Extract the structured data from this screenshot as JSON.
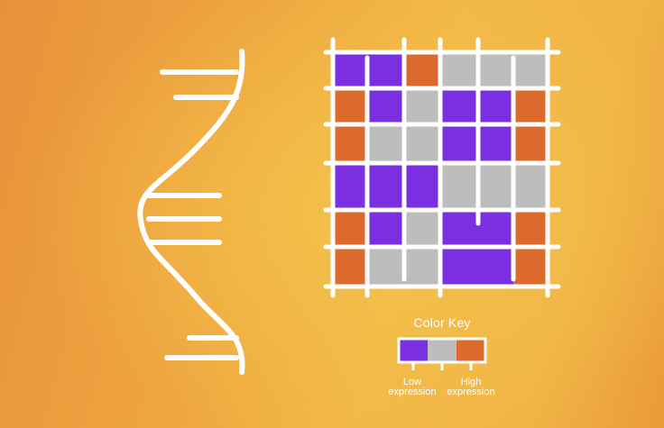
{
  "colors": {
    "background_left": "#e8913a",
    "background_center": "#f4c14b",
    "low": "#7a2fe0",
    "mid": "#bdbdbd",
    "high": "#dc6a2c",
    "lines": "#ffffff"
  },
  "heatmap": {
    "rows": 6,
    "cols": 6,
    "cells": [
      [
        "low",
        "low",
        "high",
        "mid",
        "mid",
        "mid"
      ],
      [
        "high",
        "low",
        "mid",
        "low",
        "low",
        "high"
      ],
      [
        "high",
        "mid",
        "mid",
        "low",
        "low",
        "high"
      ],
      [
        "low",
        "low",
        "low",
        "mid",
        "mid",
        "mid"
      ],
      [
        "high",
        "low",
        "mid",
        "low",
        "low",
        "high"
      ],
      [
        "high",
        "mid",
        "mid",
        "low",
        "low",
        "high"
      ]
    ]
  },
  "color_key": {
    "title": "Color Key",
    "low_label_line1": "Low",
    "low_label_line2": "expression",
    "high_label_line1": "High",
    "high_label_line2": "expression",
    "swatches": [
      "low",
      "mid",
      "high"
    ]
  },
  "dna_icon": "dna-strand-icon"
}
